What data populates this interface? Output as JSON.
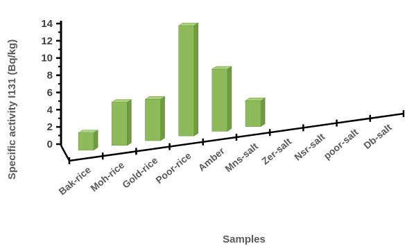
{
  "chart_data": {
    "type": "bar",
    "categories": [
      "Bak-rice",
      "Moh-rice",
      "Gold-rice",
      "Poor-rice",
      "Amber",
      "Mns-salt",
      "Zer-salt",
      "Nsr-salt",
      "poor-salt",
      "Db-salt"
    ],
    "series": [
      {
        "values": [
          2.0,
          5.0,
          4.8,
          12.8,
          7.2,
          3.0,
          0,
          0,
          0,
          0
        ]
      }
    ],
    "title": "",
    "xlabel": "Samples",
    "ylabel": "Specific activity I131 (Bq/kg)",
    "ylim": [
      0,
      14
    ],
    "yticks": [
      "0",
      "2",
      "4",
      "6",
      "8",
      "10",
      "12",
      "14"
    ],
    "grid": false,
    "legend": "none",
    "bar_color": "#8dbb5a",
    "bar_top_color": "#a9d27a",
    "bar_side_color": "#6f9a42",
    "axis_color": "#000000"
  }
}
